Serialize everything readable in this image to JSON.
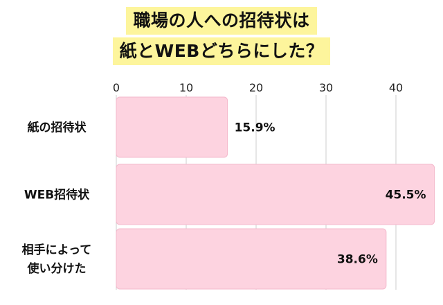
{
  "title": {
    "line1": "職場の人への招待状は",
    "line2": "紙とWEBどちらにした？"
  },
  "colors": {
    "bar_fill": "#fdd3e0",
    "bar_stroke": "#f4b9cc",
    "grid": "#cccccc",
    "title_highlight": "#fdf59c"
  },
  "chart_data": {
    "type": "bar",
    "orientation": "horizontal",
    "title": "職場の人への招待状は 紙とWEBどちらにした？",
    "categories": [
      [
        "紙の招待状"
      ],
      [
        "WEB招待状"
      ],
      [
        "相手によって",
        "使い分けた"
      ]
    ],
    "values": [
      15.9,
      45.5,
      38.6
    ],
    "value_labels": [
      "15.9%",
      "45.5%",
      "38.6%"
    ],
    "xlim": [
      0,
      45
    ],
    "x_ticks": [
      0,
      10,
      20,
      30,
      40
    ],
    "x_tick_position": "top",
    "grid": true,
    "legend": "none",
    "xlabel": "",
    "ylabel": ""
  }
}
